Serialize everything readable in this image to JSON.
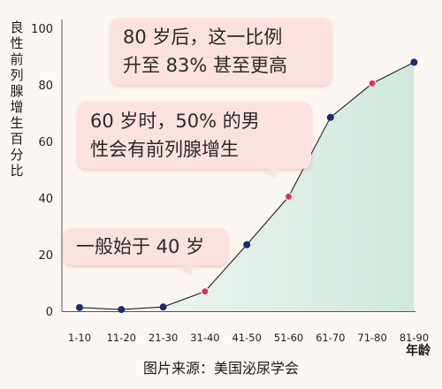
{
  "chart_data": {
    "type": "area",
    "ylabel": "良性前列腺增生百分比",
    "xunit": "年龄",
    "categories": [
      "1-10",
      "11-20",
      "21-30",
      "31-40",
      "41-50",
      "51-60",
      "61-70",
      "71-80",
      "81-90"
    ],
    "values": [
      1.3,
      0.6,
      1.5,
      7,
      23.5,
      40.5,
      68.5,
      80.5,
      88
    ],
    "highlighted_categories": [
      "31-40",
      "51-60",
      "71-80"
    ],
    "ylim": [
      0,
      100
    ],
    "yticks": [
      "0",
      "20",
      "40",
      "60",
      "80",
      "100"
    ],
    "annotations": [
      {
        "lines": [
          "80 岁后，这一比例",
          "升至 83% 甚至更高"
        ],
        "target": "71-80"
      },
      {
        "lines": [
          "60 岁时，50% 的男",
          "性会有前列腺增生"
        ],
        "target": "51-60"
      },
      {
        "lines": [
          "一般始于 40 岁"
        ],
        "target": "31-40"
      }
    ],
    "source": "图片来源：美国泌尿学会",
    "colors": {
      "point": "#1f2a78",
      "highlight_point": "#e0305a",
      "area_left": "#ffffff",
      "area_right": "#cfe8dc",
      "line": "#222222",
      "bubble": "#fbe1e0"
    }
  }
}
